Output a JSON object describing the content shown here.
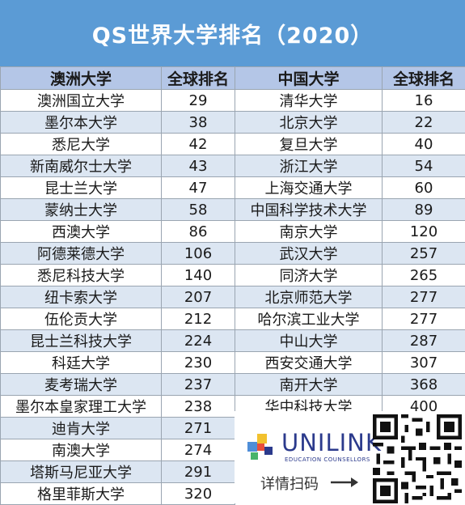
{
  "title": "QS世界大学排名（2020）",
  "table": {
    "headers": [
      "澳洲大学",
      "全球排名",
      "中国大学",
      "全球排名"
    ],
    "au_rows": [
      {
        "name": "澳洲国立大学",
        "rank": "29"
      },
      {
        "name": "墨尔本大学",
        "rank": "38"
      },
      {
        "name": "悉尼大学",
        "rank": "42"
      },
      {
        "name": "新南威尔士大学",
        "rank": "43"
      },
      {
        "name": "昆士兰大学",
        "rank": "47"
      },
      {
        "name": "蒙纳士大学",
        "rank": "58"
      },
      {
        "name": "西澳大学",
        "rank": "86"
      },
      {
        "name": "阿德莱德大学",
        "rank": "106"
      },
      {
        "name": "悉尼科技大学",
        "rank": "140"
      },
      {
        "name": "纽卡索大学",
        "rank": "207"
      },
      {
        "name": "伍伦贡大学",
        "rank": "212"
      },
      {
        "name": "昆士兰科技大学",
        "rank": "224"
      },
      {
        "name": "科廷大学",
        "rank": "230"
      },
      {
        "name": "麦考瑞大学",
        "rank": "237"
      },
      {
        "name": "墨尔本皇家理工大学",
        "rank": "238"
      },
      {
        "name": "迪肯大学",
        "rank": "271"
      },
      {
        "name": "南澳大学",
        "rank": "274"
      },
      {
        "name": "塔斯马尼亚大学",
        "rank": "291"
      },
      {
        "name": "格里菲斯大学",
        "rank": "320"
      }
    ],
    "cn_rows": [
      {
        "name": "清华大学",
        "rank": "16"
      },
      {
        "name": "北京大学",
        "rank": "22"
      },
      {
        "name": "复旦大学",
        "rank": "40"
      },
      {
        "name": "浙江大学",
        "rank": "54"
      },
      {
        "name": "上海交通大学",
        "rank": "60"
      },
      {
        "name": "中国科学技术大学",
        "rank": "89"
      },
      {
        "name": "南京大学",
        "rank": "120"
      },
      {
        "name": "武汉大学",
        "rank": "257"
      },
      {
        "name": "同济大学",
        "rank": "265"
      },
      {
        "name": "北京师范大学",
        "rank": "277"
      },
      {
        "name": "哈尔滨工业大学",
        "rank": "277"
      },
      {
        "name": "中山大学",
        "rank": "287"
      },
      {
        "name": "西安交通大学",
        "rank": "307"
      },
      {
        "name": "南开大学",
        "rank": "368"
      },
      {
        "name": "华中科技大学",
        "rank": "400"
      }
    ]
  },
  "promo": {
    "brand": "UNILINK",
    "tagline": "EDUCATION COUNSELLORS",
    "cta": "详情扫码",
    "logo_icon": "unilink-logo-icon",
    "arrow_icon": "arrow-right-icon",
    "qr_icon": "qr-code-icon"
  },
  "colors": {
    "title_bg": "#5b9bd5",
    "header_bg": "#b4c6e7",
    "stripe_bg": "#dce6f2",
    "brand": "#2b3a8c"
  }
}
